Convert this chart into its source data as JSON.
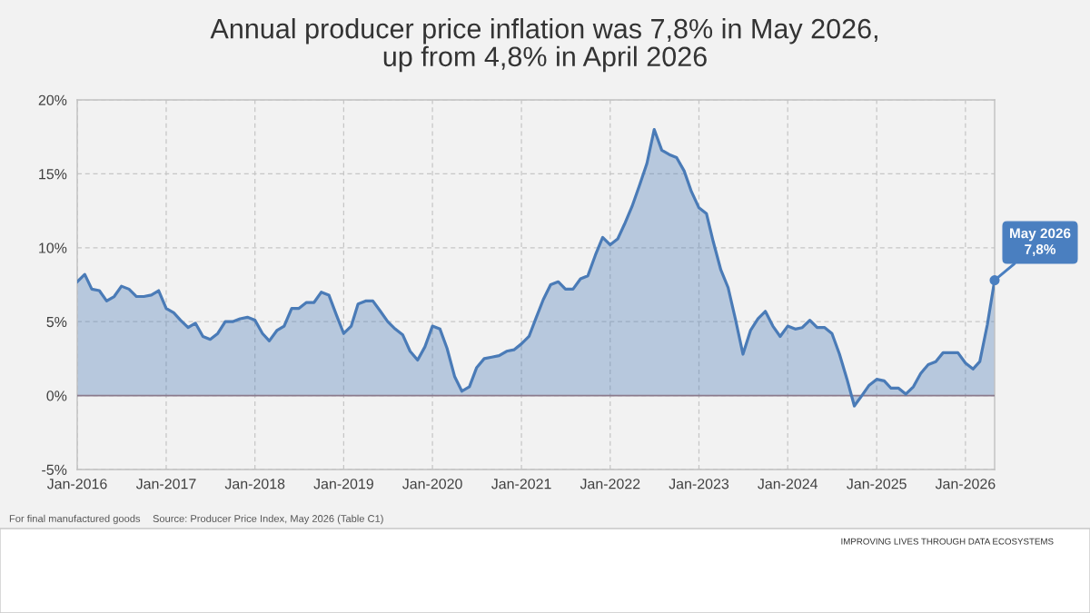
{
  "chart_data": {
    "type": "area",
    "title": "Annual producer price inflation was 7,8% in May 2026,\nup from 4,8% in April 2026",
    "x": [
      "2016-01",
      "2016-02",
      "2016-03",
      "2016-04",
      "2016-05",
      "2016-06",
      "2016-07",
      "2016-08",
      "2016-09",
      "2016-10",
      "2016-11",
      "2016-12",
      "2017-01",
      "2017-02",
      "2017-03",
      "2017-04",
      "2017-05",
      "2017-06",
      "2017-07",
      "2017-08",
      "2017-09",
      "2017-10",
      "2017-11",
      "2017-12",
      "2018-01",
      "2018-02",
      "2018-03",
      "2018-04",
      "2018-05",
      "2018-06",
      "2018-07",
      "2018-08",
      "2018-09",
      "2018-10",
      "2018-11",
      "2018-12",
      "2019-01",
      "2019-02",
      "2019-03",
      "2019-04",
      "2019-05",
      "2019-06",
      "2019-07",
      "2019-08",
      "2019-09",
      "2019-10",
      "2019-11",
      "2019-12",
      "2020-01",
      "2020-02",
      "2020-03",
      "2020-04",
      "2020-05",
      "2020-06",
      "2020-07",
      "2020-08",
      "2020-09",
      "2020-10",
      "2020-11",
      "2020-12",
      "2021-01",
      "2021-02",
      "2021-03",
      "2021-04",
      "2021-05",
      "2021-06",
      "2021-07",
      "2021-08",
      "2021-09",
      "2021-10",
      "2021-11",
      "2021-12",
      "2022-01",
      "2022-02",
      "2022-03",
      "2022-04",
      "2022-05",
      "2022-06",
      "2022-07",
      "2022-08",
      "2022-09",
      "2022-10",
      "2022-11",
      "2022-12",
      "2023-01",
      "2023-02",
      "2023-03",
      "2023-04",
      "2023-05",
      "2023-06",
      "2023-07",
      "2023-08",
      "2023-09",
      "2023-10",
      "2023-11",
      "2023-12",
      "2024-01",
      "2024-02",
      "2024-03",
      "2024-04",
      "2024-05",
      "2024-06",
      "2024-07",
      "2024-08",
      "2024-09",
      "2024-10",
      "2024-11",
      "2024-12",
      "2025-01",
      "2025-02",
      "2025-03",
      "2025-04",
      "2025-05",
      "2025-06",
      "2025-07",
      "2025-08",
      "2025-09",
      "2025-10",
      "2025-11",
      "2025-12",
      "2026-01",
      "2026-02",
      "2026-03",
      "2026-04",
      "2026-05"
    ],
    "series": [
      {
        "color": "#4a7bb7",
        "values": [
          7.7,
          8.2,
          7.2,
          7.1,
          6.4,
          6.7,
          7.4,
          7.2,
          6.7,
          6.7,
          6.8,
          7.1,
          5.9,
          5.6,
          5.1,
          4.6,
          4.9,
          4.0,
          3.8,
          4.2,
          5.0,
          5.0,
          5.2,
          5.3,
          5.1,
          4.2,
          3.7,
          4.4,
          4.7,
          5.9,
          5.9,
          6.3,
          6.3,
          7.0,
          6.8,
          5.5,
          4.2,
          4.7,
          6.2,
          6.4,
          6.4,
          5.7,
          5.0,
          4.5,
          4.1,
          3.0,
          2.4,
          3.3,
          4.7,
          4.5,
          3.2,
          1.3,
          0.3,
          0.6,
          1.9,
          2.5,
          2.6,
          2.7,
          3.0,
          3.1,
          3.5,
          4.0,
          5.2,
          6.5,
          7.5,
          7.7,
          7.2,
          7.2,
          7.9,
          8.1,
          9.5,
          10.7,
          10.2,
          10.6,
          11.6,
          12.8,
          14.2,
          15.7,
          18.0,
          16.6,
          16.3,
          16.1,
          15.2,
          13.8,
          12.7,
          12.3,
          10.4,
          8.5,
          7.3,
          5.1,
          2.8,
          4.4,
          5.2,
          5.7,
          4.7,
          4.0,
          4.7,
          4.5,
          4.6,
          5.1,
          4.6,
          4.6,
          4.2,
          2.8,
          1.1,
          -0.7,
          0.0,
          0.7,
          1.1,
          1.0,
          0.5,
          0.5,
          0.1,
          0.6,
          1.5,
          2.1,
          2.3,
          2.9,
          2.9,
          2.9,
          2.2,
          1.8,
          2.3,
          4.8,
          7.8
        ]
      }
    ],
    "xlim": [
      "2016-01",
      "2026-05"
    ],
    "xticks": [
      {
        "value": "2016-01",
        "label": "Jan-2016"
      },
      {
        "value": "2017-01",
        "label": "Jan-2017"
      },
      {
        "value": "2018-01",
        "label": "Jan-2018"
      },
      {
        "value": "2019-01",
        "label": "Jan-2019"
      },
      {
        "value": "2020-01",
        "label": "Jan-2020"
      },
      {
        "value": "2021-01",
        "label": "Jan-2021"
      },
      {
        "value": "2022-01",
        "label": "Jan-2022"
      },
      {
        "value": "2023-01",
        "label": "Jan-2023"
      },
      {
        "value": "2024-01",
        "label": "Jan-2024"
      },
      {
        "value": "2025-01",
        "label": "Jan-2025"
      },
      {
        "value": "2026-01",
        "label": "Jan-2026"
      }
    ],
    "ylim": [
      -5,
      20
    ],
    "yticks": [
      {
        "value": -5,
        "label": "-5%"
      },
      {
        "value": 0,
        "label": "0%"
      },
      {
        "value": 5,
        "label": "5%"
      },
      {
        "value": 10,
        "label": "10%"
      },
      {
        "value": 15,
        "label": "15%"
      },
      {
        "value": 20,
        "label": "20%"
      }
    ],
    "grid": true,
    "ref_lines": [
      {
        "axis": "y",
        "value": 0,
        "color": "#8a7a8c"
      }
    ],
    "annotations": [
      {
        "text": "May 2026\n7,8%",
        "x": "2026-05",
        "y": 7.8
      },
      "For final manufactured goods",
      "Source: Producer Price Index, May 2026 (Table C1)",
      "IMPROVING LIVES THROUGH DATA ECOSYSTEMS"
    ]
  }
}
